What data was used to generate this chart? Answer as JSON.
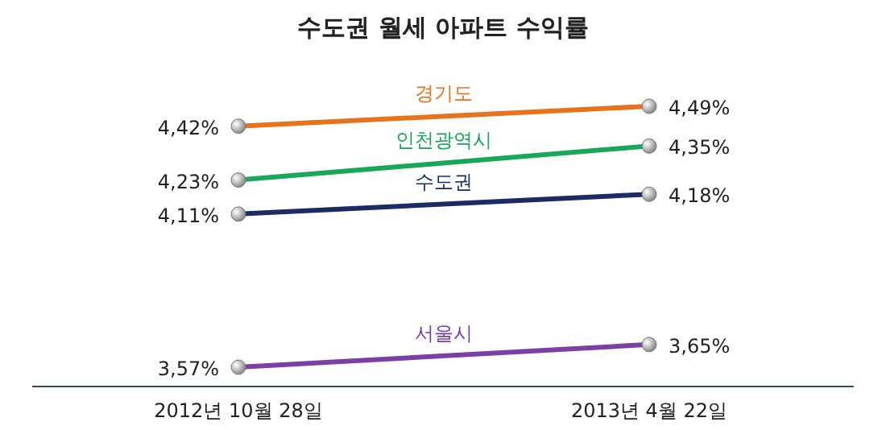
{
  "chart_data": {
    "type": "line",
    "title": "수도권 월세 아파트 수익률",
    "categories": [
      "2012년 10월 28일",
      "2013년 4월 22일"
    ],
    "marker": "circle",
    "line_style": "solid",
    "series": [
      {
        "name": "경기도",
        "color": "#e8731e",
        "values": [
          4.42,
          4.49
        ],
        "value_labels": [
          "4,42%",
          "4,49%"
        ]
      },
      {
        "name": "인천광역시",
        "color": "#17a85a",
        "values": [
          4.23,
          4.35
        ],
        "value_labels": [
          "4,23%",
          "4,35%"
        ]
      },
      {
        "name": "수도권",
        "color": "#1c2a66",
        "values": [
          4.11,
          4.18
        ],
        "value_labels": [
          "4,11%",
          "4,18%"
        ]
      },
      {
        "name": "서울시",
        "color": "#7b3fa6",
        "values": [
          3.57,
          3.65
        ],
        "value_labels": [
          "3,57%",
          "3,65%"
        ]
      }
    ]
  }
}
